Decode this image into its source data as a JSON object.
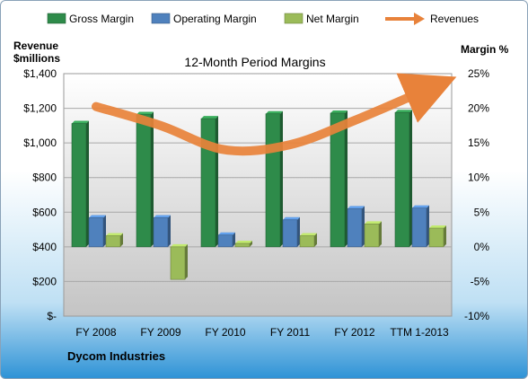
{
  "chart_data": {
    "type": "bar",
    "title": "12-Month Period Margins",
    "company": "Dycom Industries",
    "left_axis_label": [
      "Revenue",
      "$millions"
    ],
    "right_axis_label": "Margin %",
    "categories": [
      "FY 2008",
      "FY 2009",
      "FY 2010",
      "FY 2011",
      "FY 2012",
      "TTM 1-2013"
    ],
    "left_ylim": [
      0,
      1400
    ],
    "left_ticks": [
      0,
      200,
      400,
      600,
      800,
      1000,
      1200,
      1400
    ],
    "left_tick_labels": [
      "$-",
      "$200",
      "$400",
      "$600",
      "$800",
      "$1,000",
      "$1,200",
      "$1,400"
    ],
    "right_ylim": [
      -10,
      25
    ],
    "right_ticks": [
      -10,
      -5,
      0,
      5,
      10,
      15,
      20,
      25
    ],
    "right_tick_labels": [
      "-10%",
      "-5%",
      "0%",
      "5%",
      "10%",
      "15%",
      "20%",
      "25%"
    ],
    "series": [
      {
        "name": "Gross Margin",
        "axis": "right",
        "color": "#2e8b4a",
        "values": [
          17.8,
          19.1,
          18.5,
          19.2,
          19.3,
          19.4
        ]
      },
      {
        "name": "Operating Margin",
        "axis": "right",
        "color": "#4f81bd",
        "values": [
          4.2,
          4.2,
          1.7,
          3.9,
          5.5,
          5.6
        ]
      },
      {
        "name": "Net Margin",
        "axis": "right",
        "color": "#9bbb59",
        "values": [
          1.6,
          -4.7,
          0.5,
          1.6,
          3.3,
          2.7
        ]
      },
      {
        "name": "Revenues",
        "axis": "left",
        "color": "#e8823a",
        "type": "line",
        "values": [
          1210,
          1100,
          960,
          990,
          1130,
          1290
        ]
      }
    ],
    "grid": true,
    "legend": "top"
  }
}
